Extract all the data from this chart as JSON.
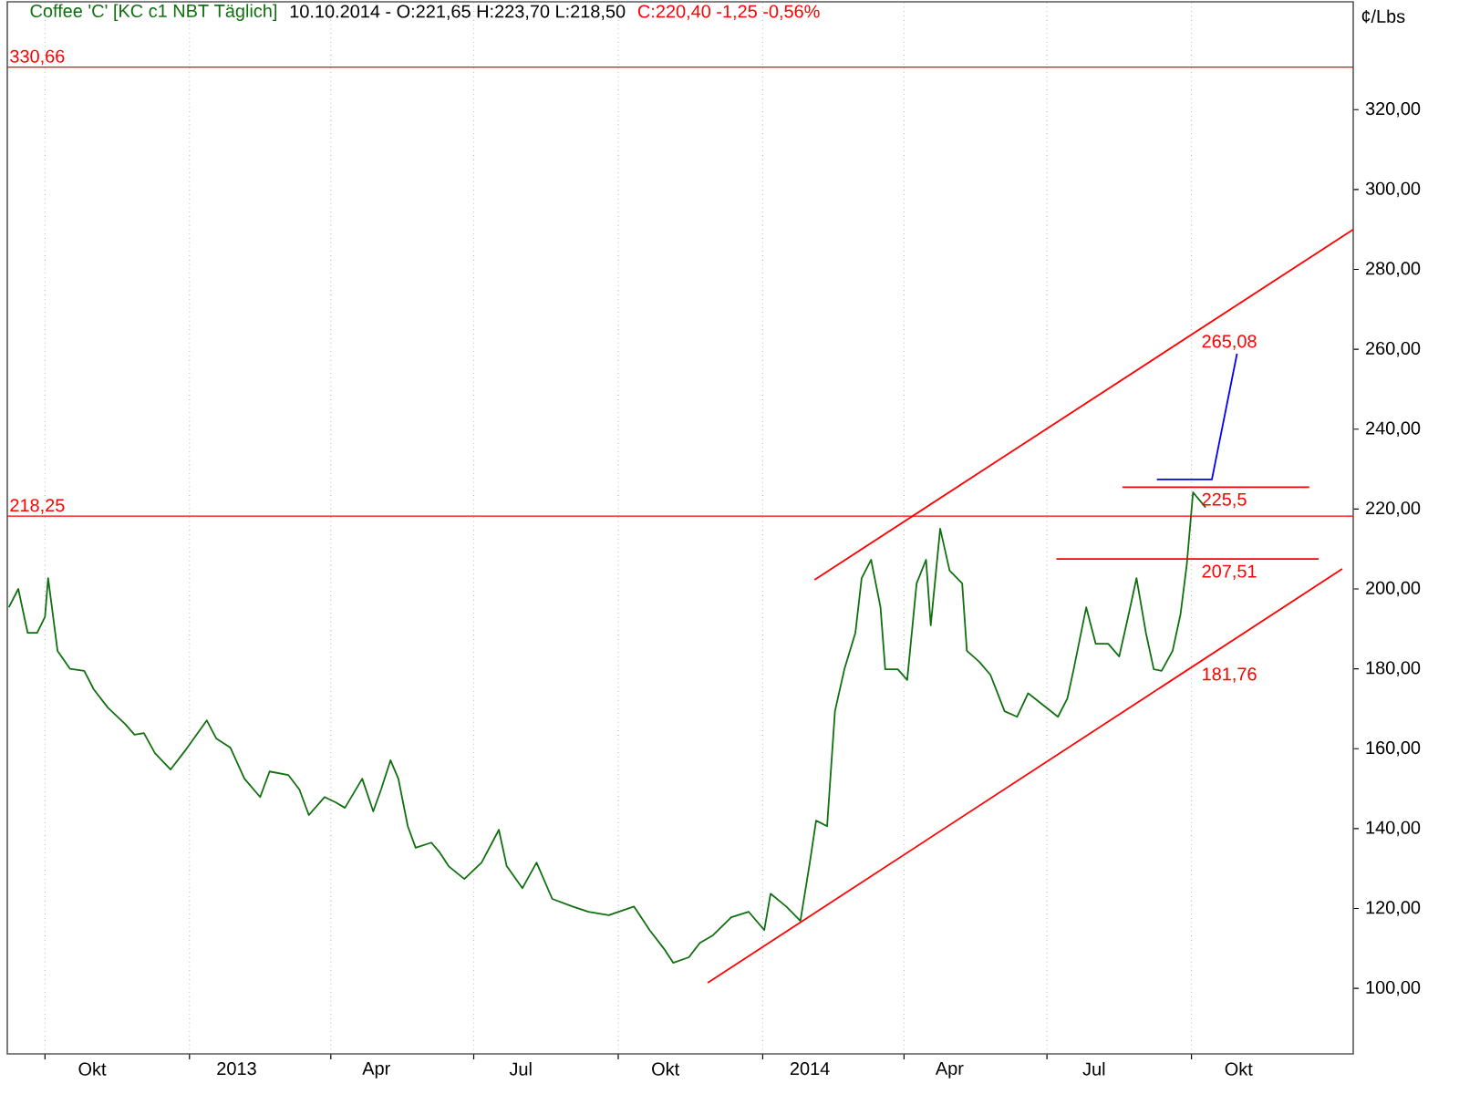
{
  "chart_data": {
    "type": "line",
    "title": "Coffee 'C' [KC c1 NBT  Täglich]",
    "subtitle": "10.10.2014 - O:221,65 H:223,70 L:218,50",
    "ylabel": "¢/Lbs",
    "annotations": [
      "C:220,40 -1,25 -0,56%",
      {
        "text": "225,5",
        "x": "2014-10-06",
        "y": 225.5
      },
      {
        "text": "207,51",
        "x": "2014-10-06",
        "y": 207.51
      },
      {
        "text": "181,76",
        "x": "2014-10-06",
        "y": 181.76
      },
      {
        "text": "265,08",
        "x": "2014-10-06",
        "y": 265.08
      }
    ],
    "xlim": [
      "2012-09-07",
      "2015-01-12"
    ],
    "ylim": [
      83.6,
      347
    ],
    "xticks": [
      {
        "value": "2012-10-01",
        "label": null
      },
      {
        "value": "2013-01-01",
        "label": null
      },
      {
        "value": "2013-04-01",
        "label": null
      },
      {
        "value": "2013-07-01",
        "label": null
      },
      {
        "value": "2013-10-01",
        "label": null
      },
      {
        "value": "2014-01-01",
        "label": null
      },
      {
        "value": "2014-04-01",
        "label": null
      },
      {
        "value": "2014-07-01",
        "label": null
      },
      {
        "value": "2014-10-01",
        "label": null
      },
      {
        "value": "2012-10-31",
        "label": "Okt"
      },
      {
        "value": "2013-01-31",
        "label": "2013"
      },
      {
        "value": "2013-04-30",
        "label": "Apr"
      },
      {
        "value": "2013-07-31",
        "label": "Jul"
      },
      {
        "value": "2013-10-31",
        "label": "Okt"
      },
      {
        "value": "2014-01-31",
        "label": "2014"
      },
      {
        "value": "2014-04-30",
        "label": "Apr"
      },
      {
        "value": "2014-07-31",
        "label": "Jul"
      },
      {
        "value": "2014-10-31",
        "label": "Okt"
      }
    ],
    "yticks": [
      {
        "value": 100,
        "label": "100,00"
      },
      {
        "value": 120,
        "label": "120,00"
      },
      {
        "value": 140,
        "label": "140,00"
      },
      {
        "value": 160,
        "label": "160,00"
      },
      {
        "value": 180,
        "label": "180,00"
      },
      {
        "value": 200,
        "label": "200,00"
      },
      {
        "value": 220,
        "label": "220,00"
      },
      {
        "value": 240,
        "label": "240,00"
      },
      {
        "value": 260,
        "label": "260,00"
      },
      {
        "value": 280,
        "label": "280,00"
      },
      {
        "value": 300,
        "label": "300,00"
      },
      {
        "value": 320,
        "label": "320,00"
      }
    ],
    "grid": "x",
    "ref_lines": [
      {
        "axis": "y",
        "value": 218.25,
        "label": "218,25",
        "color": "#ff0000"
      },
      {
        "axis": "y",
        "value": 330.66,
        "label": "330,66",
        "color": "#ff0000"
      }
    ],
    "series": [
      {
        "color": "#107010",
        "x": [
          "2012-09-08",
          "2012-09-14",
          "2012-09-20",
          "2012-09-26",
          "2012-10-01",
          "2012-10-03",
          "2012-10-09",
          "2012-10-17",
          "2012-10-26",
          "2012-11-01",
          "2012-11-10",
          "2012-11-21",
          "2012-11-27",
          "2012-12-03",
          "2012-12-10",
          "2012-12-20",
          "2012-12-29",
          "2013-01-12",
          "2013-01-18",
          "2013-01-27",
          "2013-02-05",
          "2013-02-15",
          "2013-02-21",
          "2013-03-05",
          "2013-03-12",
          "2013-03-18",
          "2013-03-28",
          "2013-04-04",
          "2013-04-10",
          "2013-04-21",
          "2013-04-28",
          "2013-05-03",
          "2013-05-09",
          "2013-05-14",
          "2013-05-20",
          "2013-05-25",
          "2013-06-04",
          "2013-06-09",
          "2013-06-15",
          "2013-06-25",
          "2013-07-06",
          "2013-07-17",
          "2013-07-22",
          "2013-08-01",
          "2013-08-10",
          "2013-08-20",
          "2013-09-02",
          "2013-09-12",
          "2013-09-25",
          "2013-10-11",
          "2013-10-21",
          "2013-10-30",
          "2013-11-05",
          "2013-11-15",
          "2013-11-22",
          "2013-11-30",
          "2013-12-12",
          "2013-12-23",
          "2014-01-02",
          "2014-01-06",
          "2014-01-16",
          "2014-01-25",
          "2014-01-31",
          "2014-02-04",
          "2014-02-11",
          "2014-02-16",
          "2014-02-22",
          "2014-03-01",
          "2014-03-05",
          "2014-03-11",
          "2014-03-17",
          "2014-03-20",
          "2014-03-28",
          "2014-04-03",
          "2014-04-09",
          "2014-04-15",
          "2014-04-18",
          "2014-04-24",
          "2014-04-30",
          "2014-05-08",
          "2014-05-11",
          "2014-05-19",
          "2014-05-26",
          "2014-06-04",
          "2014-06-12",
          "2014-06-19",
          "2014-06-29",
          "2014-07-08",
          "2014-07-14",
          "2014-07-18",
          "2014-07-26",
          "2014-08-01",
          "2014-08-09",
          "2014-08-16",
          "2014-08-22",
          "2014-08-27",
          "2014-09-02",
          "2014-09-07",
          "2014-09-12",
          "2014-09-19",
          "2014-09-24",
          "2014-09-28",
          "2014-10-02",
          "2014-10-10"
        ],
        "values": [
          195.4,
          200,
          189,
          189,
          193,
          202.7,
          184.5,
          180,
          179.5,
          174.9,
          170.3,
          166.2,
          163.5,
          163.9,
          158.9,
          154.8,
          159.4,
          167.1,
          162.6,
          160.3,
          152.5,
          147.9,
          154.3,
          153.4,
          149.8,
          143.4,
          147.9,
          146.6,
          145.2,
          152.5,
          144.3,
          149.8,
          157.1,
          152.5,
          140.6,
          135.2,
          136.5,
          134.2,
          130.6,
          127.4,
          131.5,
          139.7,
          130.6,
          125.1,
          131.5,
          122.4,
          120.5,
          119.2,
          118.3,
          120.5,
          114.6,
          110,
          106.4,
          107.8,
          111.4,
          113.2,
          117.8,
          119.2,
          114.6,
          123.7,
          120.5,
          116.9,
          131.5,
          142,
          140.6,
          169.4,
          179.9,
          189,
          202.7,
          207.3,
          195.4,
          179.9,
          179.9,
          177.2,
          201.4,
          207.3,
          190.9,
          215.1,
          204.6,
          201.4,
          184.5,
          181.7,
          178.5,
          169.4,
          168,
          173.9,
          170.8,
          168,
          172.6,
          179.9,
          195.4,
          186.3,
          186.3,
          183.1,
          193.6,
          202.7,
          189,
          179.9,
          179.5,
          184.5,
          193.6,
          206,
          224.2,
          220.4
        ]
      },
      {
        "color": "#ff0000",
        "x": [
          "2013-11-27",
          "2015-01-05"
        ],
        "values": [
          101.4,
          205.0
        ]
      },
      {
        "color": "#ff0000",
        "x": [
          "2014-02-03",
          "2015-01-12"
        ],
        "values": [
          202.3,
          290.0
        ]
      },
      {
        "color": "#ff0000",
        "x": [
          "2014-08-18",
          "2014-12-15"
        ],
        "values": [
          225.5,
          225.5
        ]
      },
      {
        "color": "#ff0000",
        "x": [
          "2014-07-07",
          "2014-12-21"
        ],
        "values": [
          207.51,
          207.51
        ]
      },
      {
        "color": "#0000ff",
        "x": [
          "2014-09-09",
          "2014-10-14",
          "2014-10-30"
        ],
        "values": [
          227.4,
          227.4,
          258.9
        ]
      }
    ]
  }
}
